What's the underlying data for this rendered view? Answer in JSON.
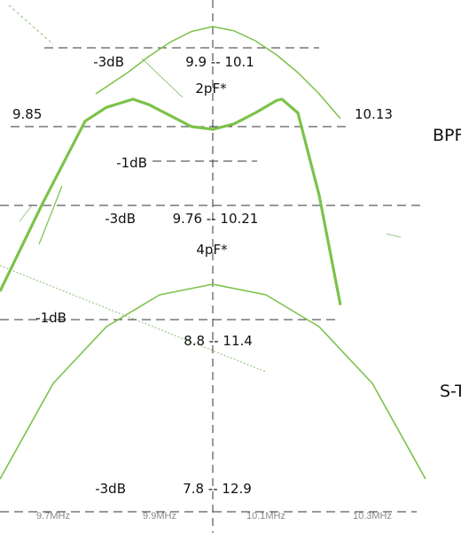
{
  "chart_data": {
    "type": "line",
    "x_unit": "MHz",
    "xlim": [
      9.6,
      10.4
    ],
    "x_ticks": [
      "9.7MHz",
      "9.9MHz",
      "10.1MHz",
      "10.3MHz"
    ],
    "x_tick_values": [
      9.7,
      9.9,
      10.1,
      10.3
    ],
    "grid": false,
    "center_line_x": 10.0,
    "colors": {
      "curve": "#7cc24a",
      "guide": "#333333",
      "tick_text": "#8a8a8a",
      "stray": "#9cc98a"
    },
    "panels": [
      {
        "name": "2pF*",
        "label": "2pF*",
        "series": [
          {
            "x": [
              9.78,
              9.84,
              9.88,
              9.92,
              9.96,
              10.0,
              10.04,
              10.08,
              10.12,
              10.16,
              10.2,
              10.24
            ],
            "y": [
              -9.5,
              -6.5,
              -4.2,
              -2.2,
              -0.7,
              0.0,
              -0.6,
              -2.0,
              -4.0,
              -6.5,
              -9.5,
              -13.0
            ]
          }
        ],
        "annotations": [
          {
            "level": "-3dB",
            "range": "9.9 -- 10.1"
          }
        ]
      },
      {
        "name": "BPF",
        "label": "BPF",
        "series": [
          {
            "x": [
              9.6,
              9.68,
              9.76,
              9.8,
              9.85,
              9.88,
              9.92,
              9.96,
              10.0,
              10.04,
              10.08,
              10.12,
              10.13,
              10.16,
              10.2,
              10.24
            ],
            "y": [
              -7.0,
              -3.8,
              -0.8,
              -0.3,
              0.0,
              -0.2,
              -0.6,
              -1.0,
              -1.1,
              -0.9,
              -0.5,
              -0.05,
              0.0,
              -0.5,
              -3.5,
              -7.5
            ]
          }
        ],
        "annotations": [
          {
            "level": "",
            "range": "9.85",
            "position": "left-edge"
          },
          {
            "level": "",
            "range": "10.13",
            "position": "right-edge"
          },
          {
            "level": "-1dB",
            "range": ""
          },
          {
            "level": "-3dB",
            "range": "9.76 -- 10.21"
          }
        ]
      },
      {
        "name": "4pF*",
        "label": "4pF*",
        "series": [
          {
            "x": [
              9.6,
              9.7,
              9.8,
              9.9,
              10.0,
              10.1,
              10.2,
              10.3,
              10.4
            ],
            "y": [
              -5.5,
              -2.8,
              -1.2,
              -0.3,
              0.0,
              -0.3,
              -1.2,
              -2.8,
              -5.5
            ]
          }
        ],
        "annotations": [
          {
            "level": "-1dB",
            "range": "8.8 -- 11.4"
          },
          {
            "level": "-3dB",
            "range": "7.8 -- 12.9"
          }
        ]
      }
    ],
    "side_labels": [
      "BPF",
      "S-T"
    ]
  }
}
